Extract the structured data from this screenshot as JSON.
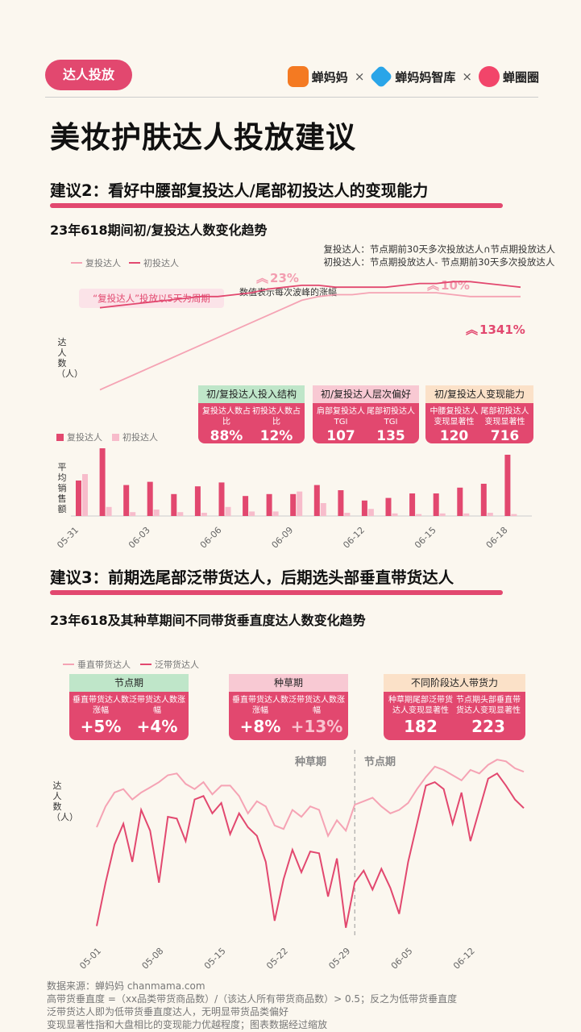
{
  "header": {
    "tag": "达人投放",
    "brands": [
      "蝉妈妈",
      "蝉妈妈智库",
      "蝉圈圈"
    ],
    "times": "×",
    "colors": {
      "accent": "#e2486f",
      "light": "#f5a3b4",
      "green": "#bfe6c9",
      "pinkhead": "#f8c9d3",
      "peach": "#fbe1c8"
    }
  },
  "title": "美妆护肤达人投放建议",
  "section2": {
    "heading": "建议2：看好中腰部复投达人/尾部初投达人的变现能力",
    "chart_title": "23年618期间初/复投达人数变化趋势",
    "definitions": [
      "复投达人：节点期前30天多次投放达人∩节点期投放达人",
      "初投达人：节点期投放达人- 节点期前30天多次投放达人"
    ],
    "line_legend": [
      "复投达人",
      "初投达人"
    ],
    "bar_legend": [
      "复投达人",
      "初投达人"
    ],
    "cycle_note": "“复投达人”投放以5天为周期",
    "wave_note": "数值表示每次波峰的涨幅",
    "pct1": "23%",
    "pct2": "10%",
    "pct3": "1341%",
    "ylabel_line": "达人数（人）",
    "ylabel_bar": "平均销售额",
    "cards": [
      {
        "head": "初/复投达人投入结构",
        "items": [
          {
            "label": "复投达人数占比",
            "value": "88%"
          },
          {
            "label": "初投达人数占比",
            "value": "12%"
          }
        ]
      },
      {
        "head": "初/复投达人层次偏好",
        "items": [
          {
            "label": "肩部复投达人TGI",
            "value": "107"
          },
          {
            "label": "尾部初投达人TGI",
            "value": "135"
          }
        ]
      },
      {
        "head": "初/复投达人变现能力",
        "items": [
          {
            "label": "中腰复投达人变现显著性",
            "value": "120"
          },
          {
            "label": "尾部初投达人变现显著性",
            "value": "716"
          }
        ]
      }
    ]
  },
  "section3": {
    "heading": "建议3：前期选尾部泛带货达人，后期选头部垂直带货达人",
    "chart_title": "23年618及其种草期间不同带货垂直度达人数变化趋势",
    "legend": [
      "垂直带货达人",
      "泛带货达人"
    ],
    "ylabel": "达人数（人）",
    "phase_labels": [
      "种草期",
      "节点期"
    ],
    "cards": [
      {
        "head": "节点期",
        "items": [
          {
            "label": "垂直带货达人数涨幅",
            "value": "+5%"
          },
          {
            "label": "泛带货达人数涨幅",
            "value": "+4%"
          }
        ]
      },
      {
        "head": "种草期",
        "items": [
          {
            "label": "垂直带货达人数涨幅",
            "value": "+8%"
          },
          {
            "label": "泛带货达人数涨幅",
            "value": "+13%"
          }
        ]
      },
      {
        "head": "不同阶段达人带货力",
        "items": [
          {
            "label": "种草期尾部泛带货达人变现显著性",
            "value": "182"
          },
          {
            "label": "节点期头部垂直带货达人变现显著性",
            "value": "223"
          }
        ]
      }
    ]
  },
  "footer": [
    "数据来源：蝉妈妈 chanmama.com",
    "高带货垂直度 =（xx品类带货商品数）/（该达人所有带货商品数）> 0.5；反之为低带货垂直度",
    "泛带货达人即为低带货垂直度达人，无明显带货品类偏好",
    "变现显著性指和大盘相比的变现能力优越程度；图表数据经过缩放"
  ],
  "chart_data": [
    {
      "type": "line",
      "series": [
        {
          "name": "复投达人",
          "values": [
            48,
            52,
            56,
            60,
            64,
            68,
            72,
            76,
            80,
            84,
            88,
            92,
            96,
            98,
            99,
            99,
            100,
            100,
            100,
            100,
            100,
            99,
            98,
            98,
            98,
            98
          ]
        },
        {
          "name": "初投达人",
          "values": [
            92,
            93,
            94,
            95,
            96,
            97,
            98,
            98,
            99,
            100,
            102,
            103,
            104,
            104,
            103,
            103,
            103,
            103,
            104,
            105,
            105,
            106,
            106,
            105,
            104,
            103
          ]
        }
      ],
      "ylabel": "达人数（人）"
    },
    {
      "type": "bar",
      "categories": [
        "05-31",
        "06-01",
        "06-02",
        "06-03",
        "06-04",
        "06-05",
        "06-06",
        "06-07",
        "06-08",
        "06-09",
        "06-10",
        "06-11",
        "06-12",
        "06-13",
        "06-14",
        "06-15",
        "06-16",
        "06-17",
        "06-18"
      ],
      "tick_labels": [
        "05-31",
        "06-03",
        "06-06",
        "06-09",
        "06-12",
        "06-15",
        "06-18"
      ],
      "series": [
        {
          "name": "复投达人",
          "values": [
            55,
            105,
            48,
            53,
            34,
            46,
            52,
            31,
            34,
            34,
            48,
            40,
            24,
            28,
            35,
            35,
            44,
            50,
            95
          ]
        },
        {
          "name": "初投达人",
          "values": [
            65,
            14,
            6,
            10,
            6,
            5,
            14,
            7,
            7,
            38,
            20,
            5,
            11,
            4,
            3,
            4,
            4,
            5,
            3
          ]
        }
      ],
      "ylabel": "平均销售额"
    },
    {
      "type": "line",
      "x": [
        "05-01",
        "05-02",
        "05-03",
        "05-04",
        "05-05",
        "05-06",
        "05-07",
        "05-08",
        "05-09",
        "05-10",
        "05-11",
        "05-12",
        "05-13",
        "05-14",
        "05-15",
        "05-16",
        "05-17",
        "05-18",
        "05-19",
        "05-20",
        "05-21",
        "05-22",
        "05-23",
        "05-24",
        "05-25",
        "05-26",
        "05-27",
        "05-28",
        "05-29",
        "05-30",
        "05-31",
        "06-01",
        "06-02",
        "06-03",
        "06-04",
        "06-05",
        "06-06",
        "06-07",
        "06-08",
        "06-09",
        "06-10",
        "06-11",
        "06-12",
        "06-13",
        "06-14",
        "06-15",
        "06-16",
        "06-17",
        "06-18"
      ],
      "tick_labels": [
        "05-01",
        "05-08",
        "05-15",
        "05-22",
        "05-29",
        "06-05",
        "06-12"
      ],
      "series": [
        {
          "name": "垂直带货达人",
          "values": [
            60,
            72,
            80,
            82,
            76,
            80,
            83,
            86,
            90,
            91,
            85,
            82,
            86,
            79,
            84,
            84,
            78,
            68,
            75,
            72,
            61,
            59,
            70,
            66,
            72,
            70,
            55,
            64,
            58,
            73,
            75,
            77,
            72,
            68,
            70,
            74,
            82,
            89,
            95,
            93,
            90,
            87,
            93,
            91,
            96,
            99,
            98,
            94,
            92
          ]
        },
        {
          "name": "泛带货达人",
          "values": [
            3,
            28,
            50,
            62,
            40,
            70,
            58,
            28,
            66,
            65,
            52,
            76,
            78,
            68,
            74,
            56,
            68,
            60,
            55,
            40,
            6,
            30,
            47,
            34,
            46,
            45,
            20,
            42,
            2,
            28,
            35,
            24,
            36,
            25,
            10,
            40,
            62,
            84,
            86,
            82,
            62,
            80,
            52,
            70,
            88,
            91,
            84,
            76,
            71
          ]
        }
      ],
      "ylabel": "达人数（人）"
    }
  ]
}
